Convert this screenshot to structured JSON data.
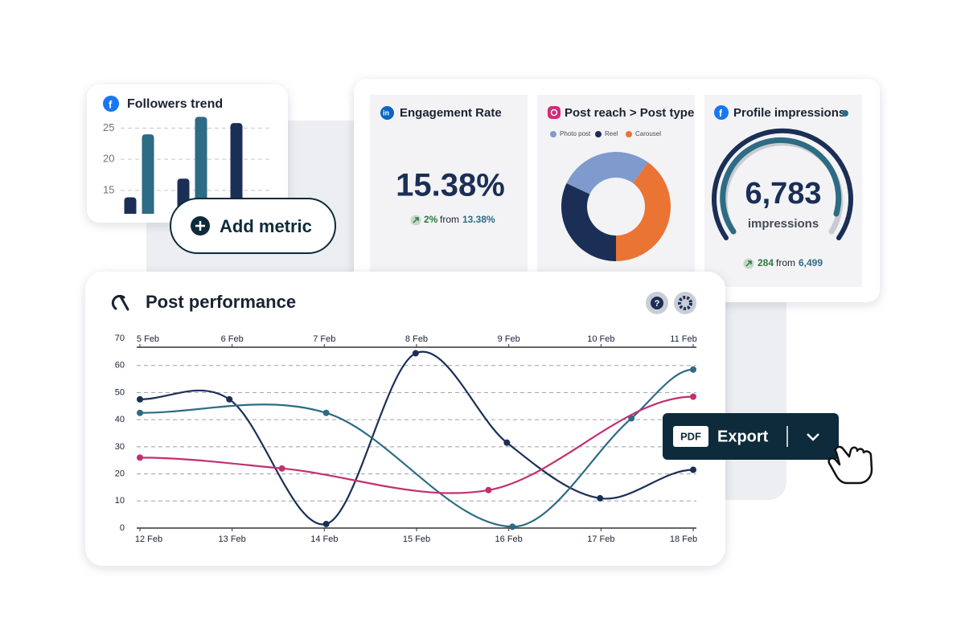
{
  "followers_card": {
    "title": "Followers trend"
  },
  "add_metric": {
    "label": "Add metric"
  },
  "engagement_card": {
    "title": "Engagement Rate",
    "value": "15.38%",
    "change": "2%",
    "from": "from",
    "previous": "13.38%"
  },
  "post_reach_card": {
    "title": "Post reach > Post type"
  },
  "impressions_card": {
    "title": "Profile impressions",
    "value": "6,783",
    "unit": "impressions",
    "change": "284",
    "from": "from",
    "previous": "6,499"
  },
  "performance_card": {
    "title": "Post performance"
  },
  "export_button": {
    "format": "PDF",
    "label": "Export"
  },
  "chart_data": [
    {
      "type": "bar",
      "categories": [
        null,
        null,
        null
      ],
      "series": [
        {
          "color": "#1b2f56",
          "values": [
            13.9,
            16.9,
            25.8
          ]
        },
        {
          "color": "#2e6b84",
          "values": [
            24,
            26.8,
            null
          ]
        }
      ],
      "ylim": [
        11.25,
        27.5
      ],
      "yticks": [
        15,
        20,
        25
      ],
      "grid": true
    },
    {
      "type": "pie",
      "categories": [
        "Photo post",
        "Reel",
        "Carousel"
      ],
      "values": [
        28,
        32,
        40
      ],
      "colors": [
        "#7f9acd",
        "#1b2f56",
        "#ea7434"
      ]
    },
    {
      "type": "line",
      "series": [
        {
          "color": "#1b2f56",
          "x": [
            12,
            12.97,
            14.02,
            14.99,
            15.98,
            16.99,
            18
          ],
          "values": [
            47.5,
            47.5,
            1.5,
            64.5,
            31.5,
            11,
            21.5
          ]
        },
        {
          "color": "#2e6b84",
          "x": [
            12,
            14.02,
            16.04,
            17.33,
            18
          ],
          "values": [
            42.5,
            42.5,
            0.5,
            40.5,
            58.5
          ]
        },
        {
          "color": "#c2306f",
          "x": [
            12,
            13.54,
            15.78,
            18
          ],
          "values": [
            26,
            22,
            14,
            48.5
          ]
        }
      ],
      "xlim": [
        12,
        18
      ],
      "xticks": [
        {
          "value": 12,
          "label": "12 Feb"
        },
        {
          "value": 13,
          "label": "13 Feb"
        },
        {
          "value": 14,
          "label": "14 Feb"
        },
        {
          "value": 15,
          "label": "15 Feb"
        },
        {
          "value": 16,
          "label": "16 Feb"
        },
        {
          "value": 17,
          "label": "17 Feb"
        },
        {
          "value": 18,
          "label": "18 Feb"
        }
      ],
      "x2ticks": [
        {
          "value": 12,
          "label": "5 Feb"
        },
        {
          "value": 13,
          "label": "6 Feb"
        },
        {
          "value": 14,
          "label": "7 Feb"
        },
        {
          "value": 15,
          "label": "8 Feb"
        },
        {
          "value": 16,
          "label": "9 Feb"
        },
        {
          "value": 17,
          "label": "10 Feb"
        },
        {
          "value": 18,
          "label": "11 Feb"
        }
      ],
      "ylim": [
        0,
        70
      ],
      "yticks": [
        0,
        10,
        20,
        30,
        40,
        50,
        60,
        70
      ],
      "grid": true
    }
  ]
}
